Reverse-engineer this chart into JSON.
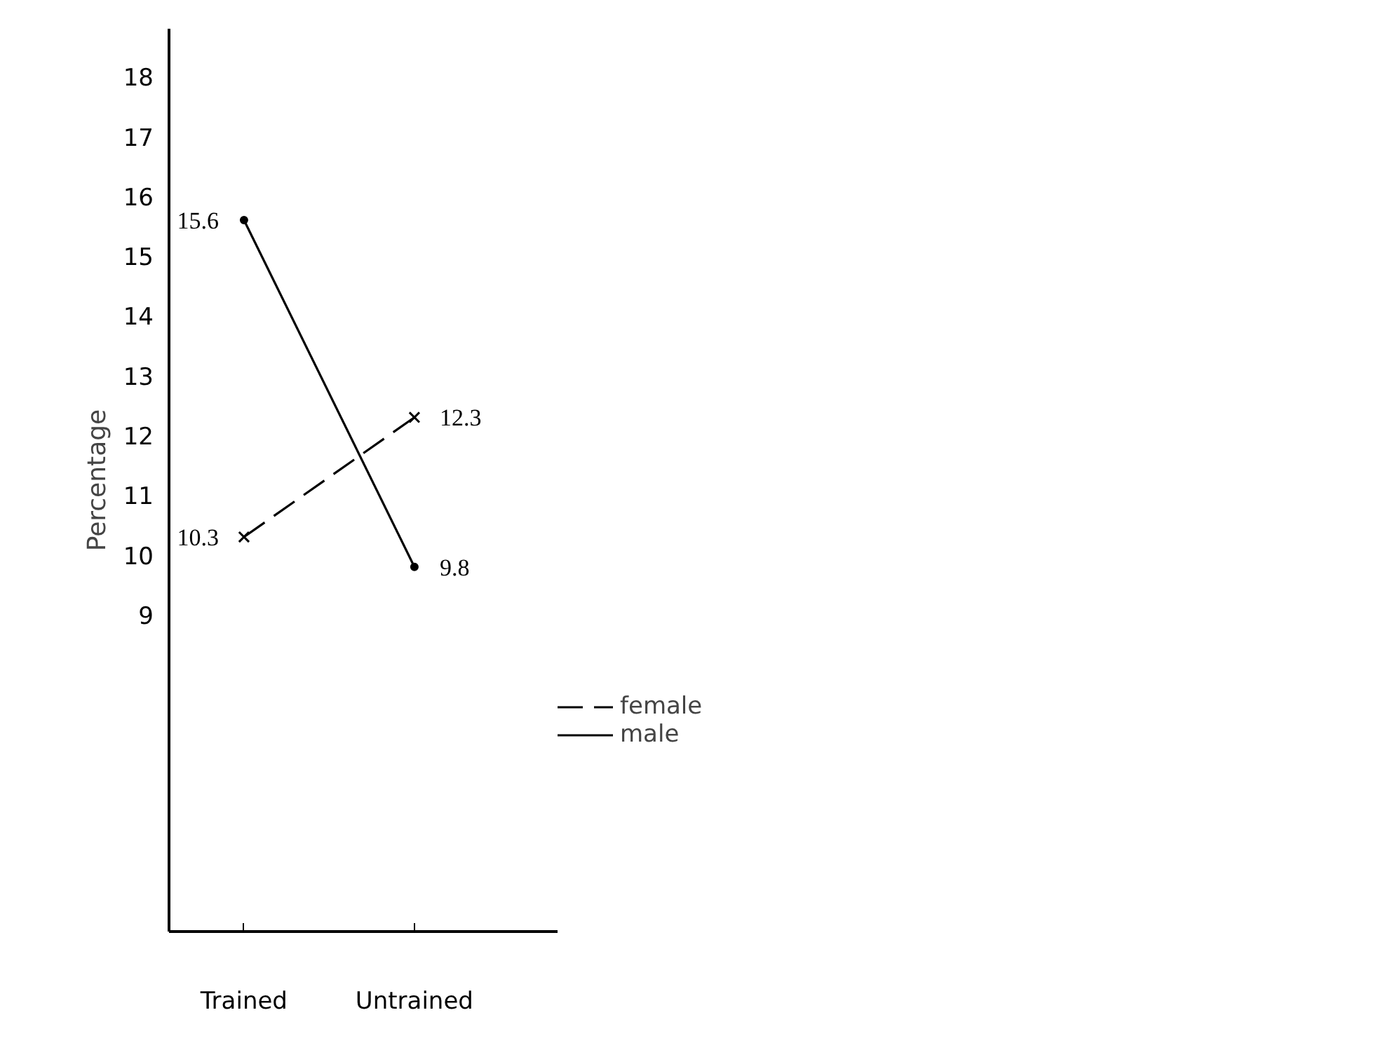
{
  "chart_data": {
    "type": "line",
    "ylabel": "Percentage",
    "categories": [
      "Trained",
      "Untrained"
    ],
    "series": [
      {
        "name": "female",
        "color": "#000000",
        "values": [
          10.3,
          12.3
        ],
        "marker": "cross",
        "line_style": "dashed"
      },
      {
        "name": "male",
        "color": "#000000",
        "values": [
          15.6,
          9.8
        ],
        "marker": "circle",
        "line_style": "solid"
      }
    ],
    "ylim": [
      3.7,
      18.8
    ],
    "yticks": [
      9,
      10,
      11,
      12,
      13,
      14,
      15,
      16,
      17,
      18
    ],
    "data_labels": true,
    "grid": false,
    "legend": "bottom right"
  }
}
